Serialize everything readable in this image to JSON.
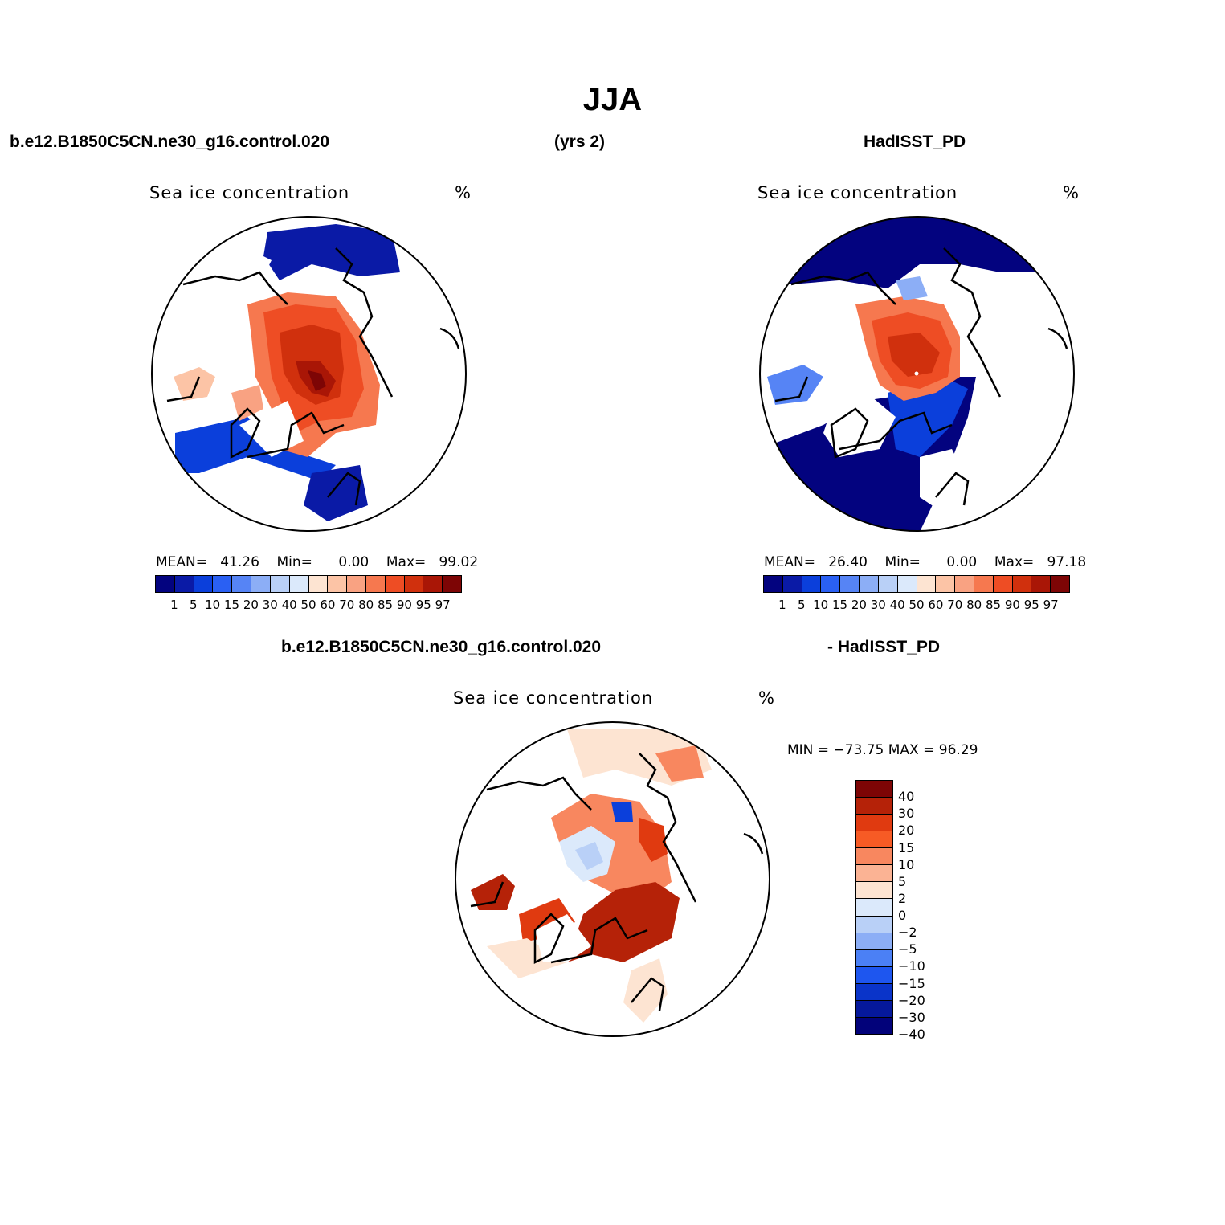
{
  "figure": {
    "title": "JJA",
    "top_left_label": "b.e12.B1850C5CN.ne30_g16.control.020",
    "top_center_label": "(yrs 2)",
    "top_right_label": "HadISST_PD",
    "bottom_left_label": "b.e12.B1850C5CN.ne30_g16.control.020",
    "bottom_right_label": "- HadISST_PD"
  },
  "panels": [
    {
      "id": "model",
      "title": "Sea ice concentration",
      "units": "%",
      "stats": {
        "mean_label": "MEAN=",
        "mean": "41.26",
        "min_label": "Min=",
        "min": "0.00",
        "max_label": "Max=",
        "max": "99.02"
      }
    },
    {
      "id": "obs",
      "title": "Sea ice concentration",
      "units": "%",
      "stats": {
        "mean_label": "MEAN=",
        "mean": "26.40",
        "min_label": "Min=",
        "min": "0.00",
        "max_label": "Max=",
        "max": "97.18"
      }
    },
    {
      "id": "diff",
      "title": "Sea ice concentration",
      "units": "%",
      "stats": {
        "text": "MIN = −73.75 MAX =  96.29"
      }
    }
  ],
  "colorbar_abs": {
    "colors": [
      "#03037f",
      "#0a1aa6",
      "#0b3fdb",
      "#2a60f3",
      "#5684f5",
      "#8caef6",
      "#b9d0f7",
      "#dbe9fb",
      "#fde4d2",
      "#fcc4a6",
      "#f9a282",
      "#f6784f",
      "#ee4d24",
      "#d0300d",
      "#a91606",
      "#7d0505"
    ],
    "labels": [
      "1",
      "5",
      "10",
      "15",
      "20",
      "30",
      "40",
      "50",
      "60",
      "70",
      "80",
      "85",
      "90",
      "95",
      "97"
    ]
  },
  "colorbar_diff": {
    "colors": [
      "#7d0505",
      "#b52208",
      "#e03a10",
      "#f75b25",
      "#f8875f",
      "#fbb394",
      "#fde4d2",
      "#dbe9fb",
      "#b9d0f7",
      "#8caef6",
      "#4b80f5",
      "#1e56ef",
      "#0a34c9",
      "#05189b",
      "#02027a"
    ],
    "labels": [
      "40",
      "30",
      "20",
      "15",
      "10",
      "5",
      "2",
      "0",
      "−2",
      "−5",
      "−10",
      "−15",
      "−20",
      "−30",
      "−40"
    ]
  }
}
